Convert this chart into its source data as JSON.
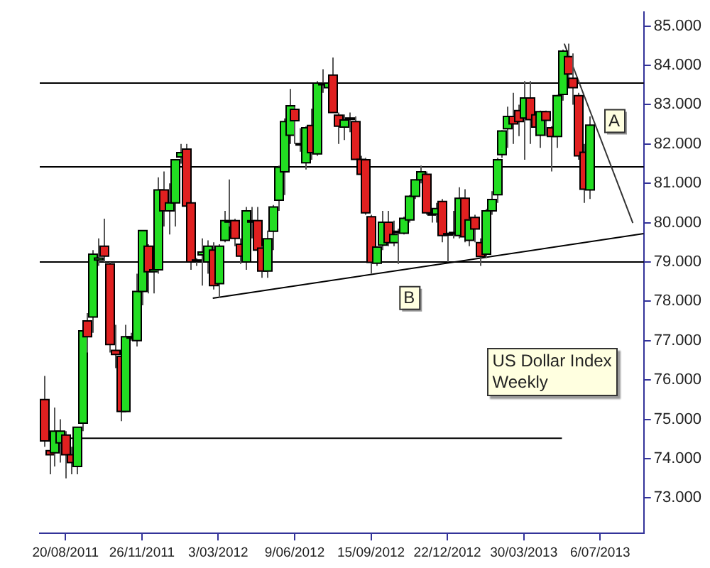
{
  "chart_data": {
    "type": "candlestick",
    "title": "US Dollar Index\nWeekly",
    "x": [
      "2011-07-23",
      "2011-07-30",
      "2011-08-06",
      "2011-08-13",
      "2011-08-20",
      "2011-08-27",
      "2011-09-03",
      "2011-09-10",
      "2011-09-17",
      "2011-09-24",
      "2011-10-01",
      "2011-10-08",
      "2011-10-15",
      "2011-10-22",
      "2011-10-29",
      "2011-11-05",
      "2011-11-12",
      "2011-11-19",
      "2011-11-26",
      "2011-12-03",
      "2011-12-10",
      "2011-12-17",
      "2011-12-24",
      "2011-12-31",
      "2012-01-07",
      "2012-01-14",
      "2012-01-21",
      "2012-01-28",
      "2012-02-04",
      "2012-02-11",
      "2012-02-18",
      "2012-02-25",
      "2012-03-03",
      "2012-03-10",
      "2012-03-17",
      "2012-03-24",
      "2012-03-31",
      "2012-04-07",
      "2012-04-14",
      "2012-04-21",
      "2012-04-28",
      "2012-05-05",
      "2012-05-12",
      "2012-05-19",
      "2012-05-26",
      "2012-06-02",
      "2012-06-09",
      "2012-06-16",
      "2012-06-23",
      "2012-06-30",
      "2012-07-07",
      "2012-07-14",
      "2012-07-21",
      "2012-07-28",
      "2012-08-04",
      "2012-08-11",
      "2012-08-18",
      "2012-08-25",
      "2012-09-01",
      "2012-09-08",
      "2012-09-15",
      "2012-09-22",
      "2012-09-29",
      "2012-10-06",
      "2012-10-13",
      "2012-10-20",
      "2012-10-27",
      "2012-11-03",
      "2012-11-10",
      "2012-11-17",
      "2012-11-24",
      "2012-12-01",
      "2012-12-08",
      "2012-12-15",
      "2012-12-22",
      "2012-12-29",
      "2013-01-05",
      "2013-01-12",
      "2013-01-19",
      "2013-01-26",
      "2013-02-02",
      "2013-02-09",
      "2013-02-16",
      "2013-02-23",
      "2013-03-02",
      "2013-03-09",
      "2013-03-16",
      "2013-03-23",
      "2013-03-30",
      "2013-04-06",
      "2013-04-13",
      "2013-04-20",
      "2013-04-27",
      "2013-05-04",
      "2013-05-11",
      "2013-05-18",
      "2013-05-25",
      "2013-06-01",
      "2013-06-08",
      "2013-06-15",
      "2013-06-22"
    ],
    "ohlc": [
      [
        75.5,
        76.1,
        74.3,
        74.45
      ],
      [
        74.2,
        74.4,
        73.6,
        74.1
      ],
      [
        74.15,
        75.3,
        73.8,
        74.7
      ],
      [
        74.4,
        75.0,
        73.9,
        74.7
      ],
      [
        74.6,
        74.7,
        73.5,
        74.1
      ],
      [
        74.1,
        74.3,
        73.6,
        73.9
      ],
      [
        73.8,
        74.8,
        73.6,
        74.8
      ],
      [
        74.9,
        77.3,
        74.7,
        77.25
      ],
      [
        77.5,
        77.7,
        76.7,
        77.1
      ],
      [
        77.6,
        79.3,
        77.2,
        79.2
      ],
      [
        79.05,
        79.6,
        78.9,
        79.1
      ],
      [
        79.4,
        80.1,
        79.0,
        79.15
      ],
      [
        78.95,
        79.0,
        76.7,
        76.9
      ],
      [
        76.75,
        77.4,
        76.3,
        76.65
      ],
      [
        76.6,
        76.6,
        74.95,
        75.2
      ],
      [
        75.2,
        77.4,
        75.2,
        77.1
      ],
      [
        77.1,
        77.2,
        77.0,
        77.1
      ],
      [
        77.0,
        78.7,
        76.85,
        78.25
      ],
      [
        78.25,
        79.8,
        77.9,
        79.8
      ],
      [
        79.4,
        79.45,
        78.2,
        78.75
      ],
      [
        78.75,
        79.2,
        78.2,
        78.8
      ],
      [
        78.8,
        81.15,
        78.7,
        80.83
      ],
      [
        80.83,
        81.3,
        79.9,
        80.3
      ],
      [
        80.3,
        81.0,
        79.7,
        80.5
      ],
      [
        80.5,
        81.6,
        79.9,
        81.6
      ],
      [
        81.67,
        82.0,
        81.5,
        81.78
      ],
      [
        81.87,
        82.0,
        80.4,
        80.42
      ],
      [
        80.5,
        80.5,
        78.8,
        79.0
      ],
      [
        79.05,
        79.1,
        78.9,
        79.03
      ],
      [
        79.18,
        79.6,
        78.4,
        79.25
      ],
      [
        79.0,
        79.55,
        78.7,
        79.4
      ],
      [
        79.3,
        79.5,
        78.3,
        78.4
      ],
      [
        78.45,
        79.45,
        78.1,
        79.4
      ],
      [
        79.55,
        80.3,
        79.5,
        80.05
      ],
      [
        80.02,
        81.1,
        79.9,
        80.05
      ],
      [
        80.05,
        80.1,
        79.4,
        79.6
      ],
      [
        79.45,
        79.6,
        78.95,
        79.15
      ],
      [
        79.0,
        80.4,
        78.8,
        80.3
      ],
      [
        80.05,
        80.4,
        79.6,
        80.05
      ],
      [
        80.05,
        80.4,
        79.2,
        79.3
      ],
      [
        79.35,
        79.4,
        78.6,
        78.77
      ],
      [
        78.77,
        79.8,
        78.6,
        79.59
      ],
      [
        79.78,
        80.45,
        79.3,
        80.4
      ],
      [
        80.57,
        81.45,
        80.3,
        81.41
      ],
      [
        81.29,
        82.65,
        80.7,
        82.57
      ],
      [
        82.22,
        83.4,
        82.0,
        82.97
      ],
      [
        82.88,
        82.95,
        82.0,
        82.59
      ],
      [
        82.0,
        82.4,
        81.8,
        82.01
      ],
      [
        81.52,
        82.45,
        81.35,
        82.41
      ],
      [
        82.47,
        82.9,
        81.6,
        81.78
      ],
      [
        81.75,
        83.6,
        81.7,
        83.55
      ],
      [
        83.54,
        83.9,
        83.3,
        83.53
      ],
      [
        83.43,
        83.6,
        83.3,
        83.55
      ],
      [
        83.75,
        84.2,
        82.8,
        82.8
      ],
      [
        82.73,
        82.8,
        82.0,
        82.45
      ],
      [
        82.43,
        82.75,
        82.1,
        82.61
      ],
      [
        82.65,
        82.8,
        82.3,
        82.66
      ],
      [
        82.57,
        82.7,
        81.6,
        81.61
      ],
      [
        81.61,
        81.7,
        80.9,
        81.23
      ],
      [
        81.6,
        81.65,
        80.2,
        80.25
      ],
      [
        80.15,
        80.2,
        78.7,
        78.99
      ],
      [
        78.97,
        79.4,
        78.9,
        79.38
      ],
      [
        79.43,
        80.3,
        79.3,
        80.01
      ],
      [
        80.01,
        80.3,
        79.4,
        79.49
      ],
      [
        79.49,
        80.05,
        79.4,
        79.7
      ],
      [
        79.77,
        79.85,
        78.95,
        79.78
      ],
      [
        79.73,
        80.15,
        79.7,
        80.11
      ],
      [
        80.07,
        80.7,
        80.0,
        80.67
      ],
      [
        80.67,
        81.1,
        80.6,
        81.09
      ],
      [
        81.09,
        81.45,
        81.0,
        81.29
      ],
      [
        81.23,
        81.3,
        80.2,
        80.25
      ],
      [
        80.23,
        80.25,
        80.0,
        80.22
      ],
      [
        80.22,
        80.5,
        80.0,
        80.36
      ],
      [
        80.54,
        80.6,
        79.5,
        79.67
      ],
      [
        79.71,
        79.75,
        79.0,
        79.72
      ],
      [
        79.74,
        80.3,
        79.6,
        79.75
      ],
      [
        79.67,
        80.9,
        79.6,
        80.62
      ],
      [
        80.62,
        80.85,
        79.5,
        79.64
      ],
      [
        79.55,
        80.1,
        79.4,
        80.07
      ],
      [
        80.13,
        80.2,
        79.5,
        79.84
      ],
      [
        79.49,
        79.6,
        78.9,
        79.14
      ],
      [
        79.2,
        80.35,
        79.1,
        80.3
      ],
      [
        80.3,
        80.8,
        80.2,
        80.59
      ],
      [
        80.71,
        81.65,
        80.5,
        81.6
      ],
      [
        81.73,
        82.35,
        81.65,
        82.33
      ],
      [
        82.39,
        82.95,
        81.9,
        82.7
      ],
      [
        82.7,
        83.3,
        82.0,
        82.51
      ],
      [
        82.85,
        83.0,
        82.2,
        82.57
      ],
      [
        82.66,
        83.6,
        81.6,
        83.17
      ],
      [
        83.17,
        83.6,
        82.0,
        82.62
      ],
      [
        82.74,
        82.8,
        82.2,
        82.43
      ],
      [
        82.22,
        82.85,
        81.9,
        82.82
      ],
      [
        82.82,
        82.85,
        82.2,
        82.6
      ],
      [
        82.41,
        82.45,
        81.3,
        82.19
      ],
      [
        82.19,
        83.25,
        81.9,
        83.23
      ],
      [
        83.26,
        84.4,
        83.1,
        84.36
      ],
      [
        84.22,
        84.55,
        83.5,
        83.78
      ],
      [
        83.67,
        84.3,
        83.0,
        83.43
      ],
      [
        83.23,
        83.3,
        81.6,
        81.7
      ],
      [
        81.79,
        82.0,
        80.5,
        80.85
      ],
      [
        80.83,
        82.7,
        80.6,
        82.48
      ]
    ],
    "colors": [
      "#e02020",
      "#e02020",
      "#22dd22",
      "#22dd22",
      "#e02020",
      "#e02020",
      "#22dd22",
      "#22dd22",
      "#e02020",
      "#22dd22",
      "#22dd22",
      "#e02020",
      "#e02020",
      "#e02020",
      "#e02020",
      "#22dd22",
      "#22dd22",
      "#22dd22",
      "#22dd22",
      "#e02020",
      "#22dd22",
      "#22dd22",
      "#e02020",
      "#22dd22",
      "#22dd22",
      "#22dd22",
      "#e02020",
      "#e02020",
      "#e02020",
      "#22dd22",
      "#22dd22",
      "#e02020",
      "#22dd22",
      "#22dd22",
      "#22dd22",
      "#e02020",
      "#e02020",
      "#22dd22",
      "#22dd22",
      "#e02020",
      "#e02020",
      "#22dd22",
      "#22dd22",
      "#22dd22",
      "#22dd22",
      "#22dd22",
      "#e02020",
      "#22dd22",
      "#22dd22",
      "#e02020",
      "#22dd22",
      "#e02020",
      "#22dd22",
      "#e02020",
      "#e02020",
      "#22dd22",
      "#22dd22",
      "#e02020",
      "#e02020",
      "#e02020",
      "#e02020",
      "#22dd22",
      "#22dd22",
      "#e02020",
      "#22dd22",
      "#22dd22",
      "#22dd22",
      "#22dd22",
      "#22dd22",
      "#22dd22",
      "#e02020",
      "#e02020",
      "#22dd22",
      "#e02020",
      "#22dd22",
      "#22dd22",
      "#22dd22",
      "#e02020",
      "#22dd22",
      "#e02020",
      "#e02020",
      "#22dd22",
      "#22dd22",
      "#22dd22",
      "#22dd22",
      "#22dd22",
      "#e02020",
      "#e02020",
      "#22dd22",
      "#e02020",
      "#e02020",
      "#22dd22",
      "#e02020",
      "#e02020",
      "#22dd22",
      "#22dd22",
      "#e02020",
      "#e02020",
      "#e02020",
      "#e02020",
      "#22dd22"
    ],
    "series": [
      {
        "type": "line",
        "color": "#000000",
        "x": [
          "2011-07-18",
          "2013-05-18"
        ],
        "values": [
          74.52,
          74.52
        ]
      },
      {
        "type": "line",
        "color": "#000000",
        "x": [
          "2012-02-25",
          "2013-08-31"
        ],
        "values": [
          78.08,
          79.72
        ]
      },
      {
        "type": "line",
        "color": "#333333",
        "x": [
          "2013-05-21",
          "2013-08-17"
        ],
        "values": [
          84.55,
          79.99
        ]
      }
    ],
    "ref_lines": [
      {
        "axis": "y",
        "value": 83.55,
        "color": "#000000"
      },
      {
        "axis": "y",
        "value": 81.44,
        "color": "#000000"
      },
      {
        "axis": "y",
        "value": 79.0,
        "color": "#000000"
      }
    ],
    "annotations": [
      {
        "text": "A",
        "x": "2013-07-24",
        "y": 82.6
      },
      {
        "text": "B",
        "x": "2012-11-03",
        "y": 78.1
      }
    ],
    "xlim": [
      "2011-07-18",
      "2013-08-31"
    ],
    "xticks": [
      {
        "value": "2011-08-20",
        "label": "20/08/2011"
      },
      {
        "value": "2011-11-26",
        "label": "26/11/2011"
      },
      {
        "value": "2012-03-03",
        "label": "3/03/2012"
      },
      {
        "value": "2012-06-09",
        "label": "9/06/2012"
      },
      {
        "value": "2012-09-15",
        "label": "15/09/2012"
      },
      {
        "value": "2012-12-22",
        "label": "22/12/2012"
      },
      {
        "value": "2013-03-30",
        "label": "30/03/2013"
      },
      {
        "value": "2013-07-06",
        "label": "6/07/2013"
      }
    ],
    "ylim": [
      72.1,
      85.35
    ],
    "yticks": [
      {
        "value": 73,
        "label": "73.000"
      },
      {
        "value": 74,
        "label": "74.000"
      },
      {
        "value": 75,
        "label": "75.000"
      },
      {
        "value": 76,
        "label": "76.000"
      },
      {
        "value": 77,
        "label": "77.000"
      },
      {
        "value": 78,
        "label": "78.000"
      },
      {
        "value": 79,
        "label": "79.000"
      },
      {
        "value": 80,
        "label": "80.000"
      },
      {
        "value": 81,
        "label": "81.000"
      },
      {
        "value": 82,
        "label": "82.000"
      },
      {
        "value": 83,
        "label": "83.000"
      },
      {
        "value": 84,
        "label": "84.000"
      },
      {
        "value": 85,
        "label": "85.000"
      }
    ],
    "marker": "none",
    "line_style": "solid"
  }
}
